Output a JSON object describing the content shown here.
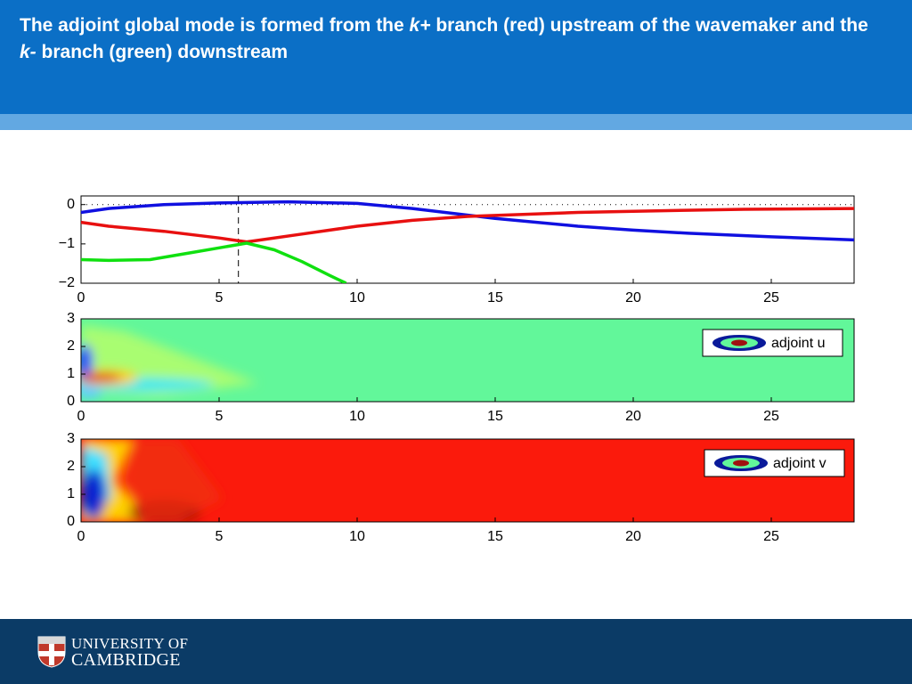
{
  "header": {
    "title_parts": [
      "The adjoint global mode is formed from the ",
      "k+",
      " branch (red) upstream of the wavemaker and the ",
      "k-",
      " branch (green) downstream"
    ]
  },
  "footer": {
    "logo_lines": [
      "UNIVERSITY OF",
      "CAMBRIDGE"
    ]
  },
  "chart_data": [
    {
      "type": "line",
      "xlim": [
        0,
        28
      ],
      "xticks": [
        0,
        5,
        10,
        15,
        20,
        25
      ],
      "ylim": [
        -2,
        0.22
      ],
      "yticks": [
        {
          "value": 0,
          "label": "0"
        },
        {
          "value": -1,
          "label": "−1"
        },
        {
          "value": -2,
          "label": "−2"
        }
      ],
      "hline_y": 0,
      "vline_x": 5.7,
      "series": [
        {
          "name": "blue",
          "color": "#1010e0",
          "x": [
            0,
            1,
            3,
            5,
            7.5,
            10,
            12,
            15,
            18,
            20,
            22,
            25,
            28
          ],
          "values": [
            -0.2,
            -0.1,
            0,
            0.04,
            0.07,
            0.03,
            -0.1,
            -0.35,
            -0.55,
            -0.65,
            -0.73,
            -0.82,
            -0.9
          ]
        },
        {
          "name": "red",
          "color": "#e81010",
          "x": [
            0,
            1,
            3,
            5,
            6,
            8,
            10,
            12,
            14,
            16,
            18,
            20,
            24,
            28
          ],
          "values": [
            -0.45,
            -0.55,
            -0.68,
            -0.85,
            -0.95,
            -0.75,
            -0.55,
            -0.4,
            -0.3,
            -0.25,
            -0.2,
            -0.17,
            -0.12,
            -0.1
          ]
        },
        {
          "name": "green",
          "color": "#10e010",
          "x": [
            0,
            1,
            2.5,
            4,
            5,
            6,
            7,
            8,
            9,
            9.6
          ],
          "values": [
            -1.4,
            -1.42,
            -1.4,
            -1.22,
            -1.1,
            -0.98,
            -1.15,
            -1.45,
            -1.8,
            -2.0
          ]
        }
      ]
    },
    {
      "type": "contour",
      "xlim": [
        0,
        28
      ],
      "xticks": [
        0,
        5,
        10,
        15,
        20,
        25
      ],
      "ylim": [
        0,
        3
      ],
      "yticks": [
        0,
        1,
        2,
        3
      ],
      "legend": "adjoint u",
      "base_color": "#62f79a"
    },
    {
      "type": "contour",
      "xlim": [
        0,
        28
      ],
      "xticks": [
        0,
        5,
        10,
        15,
        20,
        25
      ],
      "ylim": [
        0,
        3
      ],
      "yticks": [
        0,
        1,
        2,
        3
      ],
      "legend": "adjoint v",
      "base_color": "#fb1a0c"
    }
  ]
}
